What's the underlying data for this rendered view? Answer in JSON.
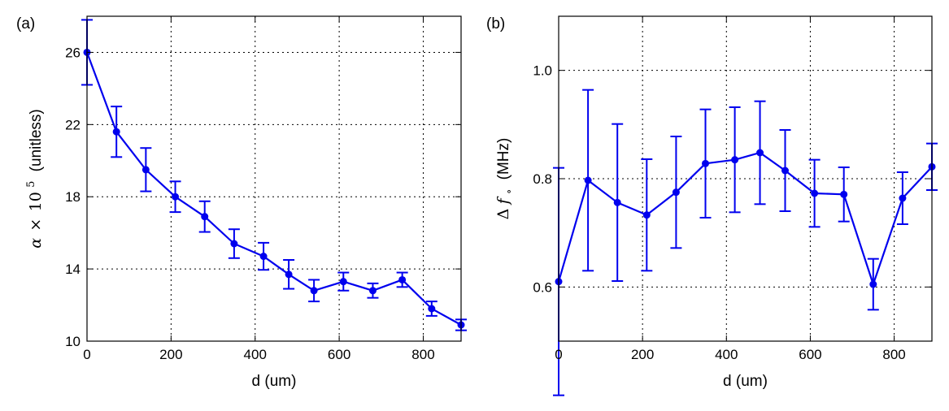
{
  "chart_data": [
    {
      "type": "line",
      "panel_label": "(a)",
      "xlabel": "d (um)",
      "ylabel_text": "(unitless)",
      "ylabel_math": {
        "symbol": "α",
        "times": "×",
        "base": "10",
        "exp": "5"
      },
      "xlim": [
        0,
        890
      ],
      "ylim": [
        10,
        28
      ],
      "xticks": [
        0,
        200,
        400,
        600,
        800
      ],
      "yticks": [
        10,
        14,
        18,
        22,
        26
      ],
      "grid": true,
      "color": "#0000ee",
      "x": [
        0,
        70,
        140,
        210,
        280,
        350,
        420,
        480,
        540,
        610,
        680,
        750,
        820,
        890
      ],
      "y": [
        26.0,
        21.6,
        19.5,
        18.0,
        16.9,
        15.4,
        14.7,
        13.7,
        12.8,
        13.3,
        12.8,
        13.4,
        11.8,
        10.9
      ],
      "yerr": [
        1.8,
        1.4,
        1.2,
        0.85,
        0.85,
        0.8,
        0.75,
        0.8,
        0.6,
        0.5,
        0.4,
        0.4,
        0.4,
        0.3
      ]
    },
    {
      "type": "line",
      "panel_label": "(b)",
      "xlabel": "d (um)",
      "ylabel_text": "(MHz)",
      "ylabel_math": {
        "symbol": "Δ",
        "f": "f",
        "sub": "∘"
      },
      "xlim": [
        0,
        890
      ],
      "ylim": [
        0.5,
        1.1
      ],
      "xticks": [
        0,
        200,
        400,
        600,
        800
      ],
      "yticks": [
        0.6,
        0.8,
        1.0
      ],
      "ytick_labels": [
        "0.6",
        "0.8",
        "1.0"
      ],
      "grid": true,
      "color": "#0000ee",
      "x": [
        0,
        70,
        140,
        210,
        280,
        350,
        420,
        480,
        540,
        610,
        680,
        750,
        820,
        890
      ],
      "y": [
        0.61,
        0.797,
        0.756,
        0.733,
        0.775,
        0.828,
        0.835,
        0.848,
        0.815,
        0.773,
        0.771,
        0.605,
        0.764,
        0.822
      ],
      "yerr": [
        0.21,
        0.167,
        0.145,
        0.103,
        0.103,
        0.1,
        0.097,
        0.095,
        0.075,
        0.062,
        0.05,
        0.047,
        0.048,
        0.043
      ]
    }
  ]
}
